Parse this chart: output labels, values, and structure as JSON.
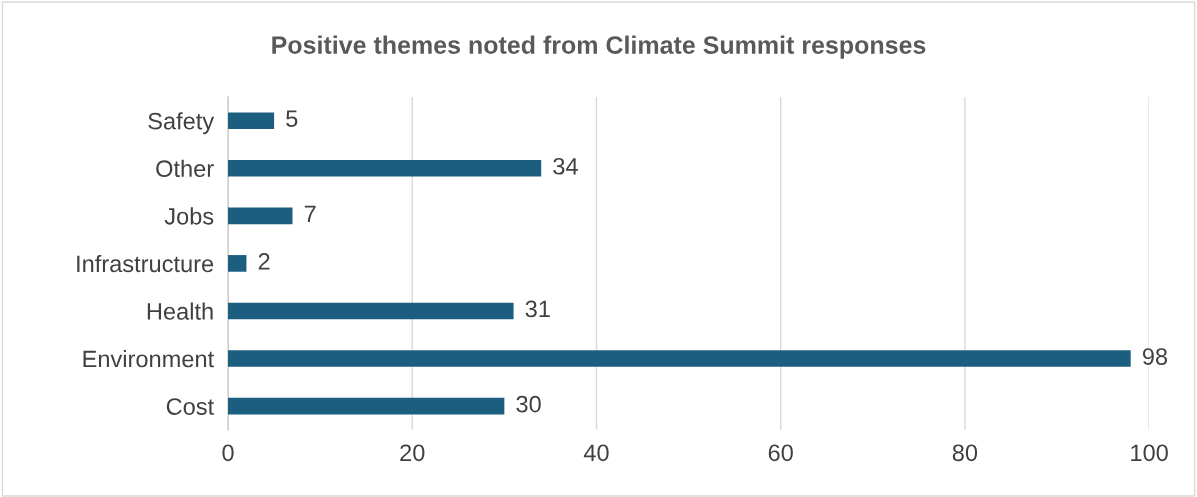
{
  "chart_data": {
    "type": "bar",
    "orientation": "horizontal",
    "title": "Positive themes noted from Climate Summit responses",
    "categories": [
      "Safety",
      "Other",
      "Jobs",
      "Infrastructure",
      "Health",
      "Environment",
      "Cost"
    ],
    "values": [
      5,
      34,
      7,
      2,
      31,
      98,
      30
    ],
    "color": "#1b5e80",
    "xlim": [
      0,
      100
    ],
    "xticks": [
      0,
      20,
      40,
      60,
      80,
      100
    ],
    "grid": "x",
    "data_labels": true,
    "legend": false
  }
}
